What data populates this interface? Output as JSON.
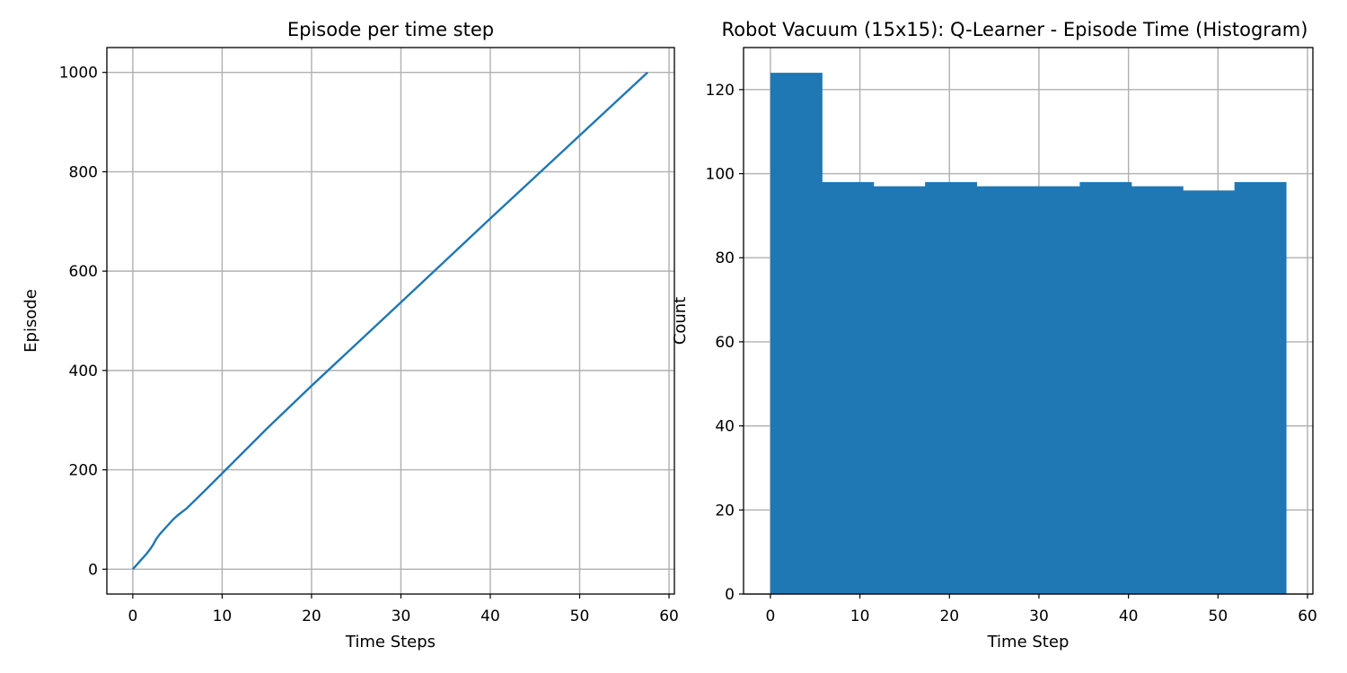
{
  "chart_data": [
    {
      "type": "line",
      "title": "Episode per time step",
      "xlabel": "Time Steps",
      "ylabel": "Episode",
      "xlim": [
        -2.9,
        60.6
      ],
      "ylim": [
        -50,
        1050
      ],
      "xticks": [
        0,
        10,
        20,
        30,
        40,
        50,
        60
      ],
      "yticks": [
        0,
        200,
        400,
        600,
        800,
        1000
      ],
      "grid": true,
      "color": "#1f77b4",
      "series": [
        {
          "name": "episode",
          "x": [
            0,
            0.5,
            1,
            1.5,
            2,
            2.3,
            2.6,
            3,
            3.5,
            4,
            4.5,
            5,
            5.5,
            6,
            8,
            10,
            15,
            20,
            30,
            40,
            50,
            57.6
          ],
          "y": [
            0,
            10,
            20,
            30,
            42,
            50,
            60,
            70,
            80,
            90,
            100,
            108,
            115,
            122,
            157,
            193,
            283,
            369,
            537,
            706,
            873,
            1000
          ]
        }
      ]
    },
    {
      "type": "bar",
      "title": "Robot Vacuum (15x15): Q-Learner - Episode Time (Histogram)",
      "xlabel": "Time Step",
      "ylabel": "Count",
      "xlim": [
        -3,
        60.6
      ],
      "ylim": [
        0,
        130
      ],
      "xticks": [
        0,
        10,
        20,
        30,
        40,
        50,
        60
      ],
      "yticks": [
        0,
        20,
        40,
        60,
        80,
        100,
        120
      ],
      "grid": true,
      "color": "#1f77b4",
      "bin_edges": [
        0,
        5.76,
        11.52,
        17.28,
        23.04,
        28.8,
        34.56,
        40.32,
        46.08,
        51.84,
        57.6
      ],
      "values": [
        124,
        98,
        97,
        98,
        97,
        97,
        98,
        97,
        96,
        98
      ]
    }
  ]
}
